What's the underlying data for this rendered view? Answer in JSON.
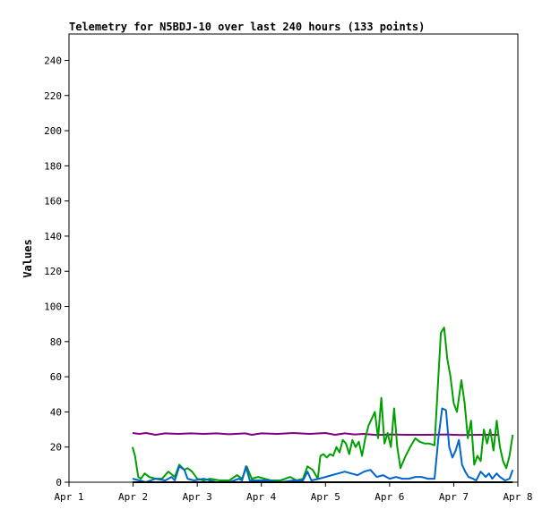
{
  "chart_data": {
    "type": "line",
    "title": "Telemetry for N5BDJ-10 over last 240 hours (133 points)",
    "xlabel": "",
    "ylabel": "Values",
    "xlim": [
      1,
      8
    ],
    "ylim": [
      0,
      255
    ],
    "x_ticks": [
      1,
      2,
      3,
      4,
      5,
      6,
      7,
      8
    ],
    "x_tick_labels": [
      "Apr 1",
      "Apr 2",
      "Apr 3",
      "Apr 4",
      "Apr 5",
      "Apr 6",
      "Apr 7",
      "Apr 8"
    ],
    "y_ticks": [
      0,
      20,
      40,
      60,
      80,
      100,
      120,
      140,
      160,
      180,
      200,
      220,
      240
    ],
    "grid": false,
    "legend": "none",
    "series": [
      {
        "color": "#800080",
        "points": [
          [
            1.99,
            28
          ],
          [
            2.1,
            27.5
          ],
          [
            2.2,
            28
          ],
          [
            2.35,
            27
          ],
          [
            2.5,
            27.8
          ],
          [
            2.7,
            27.5
          ],
          [
            2.9,
            27.8
          ],
          [
            3.1,
            27.5
          ],
          [
            3.3,
            27.8
          ],
          [
            3.5,
            27.3
          ],
          [
            3.75,
            27.8
          ],
          [
            3.85,
            27
          ],
          [
            4.0,
            27.8
          ],
          [
            4.25,
            27.5
          ],
          [
            4.5,
            28
          ],
          [
            4.75,
            27.5
          ],
          [
            5.0,
            28
          ],
          [
            5.15,
            27
          ],
          [
            5.3,
            27.8
          ],
          [
            5.45,
            27.2
          ],
          [
            5.6,
            27.5
          ],
          [
            5.8,
            26.8
          ],
          [
            6.0,
            27.2
          ],
          [
            6.3,
            27
          ],
          [
            6.6,
            27
          ],
          [
            6.9,
            27.2
          ],
          [
            7.1,
            26.8
          ],
          [
            7.4,
            27
          ],
          [
            7.7,
            27
          ]
        ]
      },
      {
        "color": "#00a000",
        "points": [
          [
            1.99,
            20
          ],
          [
            2.03,
            15
          ],
          [
            2.08,
            3
          ],
          [
            2.12,
            2
          ],
          [
            2.18,
            5
          ],
          [
            2.25,
            3
          ],
          [
            2.35,
            2
          ],
          [
            2.45,
            2
          ],
          [
            2.55,
            6
          ],
          [
            2.65,
            3
          ],
          [
            2.72,
            10
          ],
          [
            2.8,
            7
          ],
          [
            2.85,
            8
          ],
          [
            2.92,
            6
          ],
          [
            3.0,
            2
          ],
          [
            3.1,
            1
          ],
          [
            3.2,
            2
          ],
          [
            3.35,
            1
          ],
          [
            3.5,
            1
          ],
          [
            3.62,
            4
          ],
          [
            3.7,
            2
          ],
          [
            3.77,
            9
          ],
          [
            3.85,
            2
          ],
          [
            3.95,
            3
          ],
          [
            4.05,
            2
          ],
          [
            4.15,
            1
          ],
          [
            4.3,
            1
          ],
          [
            4.45,
            3
          ],
          [
            4.55,
            1
          ],
          [
            4.65,
            2
          ],
          [
            4.72,
            9
          ],
          [
            4.8,
            7
          ],
          [
            4.88,
            2
          ],
          [
            4.92,
            15
          ],
          [
            4.97,
            16
          ],
          [
            5.02,
            14
          ],
          [
            5.07,
            16
          ],
          [
            5.12,
            15
          ],
          [
            5.17,
            20
          ],
          [
            5.22,
            17
          ],
          [
            5.27,
            24
          ],
          [
            5.32,
            22
          ],
          [
            5.37,
            16
          ],
          [
            5.42,
            24
          ],
          [
            5.47,
            20
          ],
          [
            5.52,
            23
          ],
          [
            5.57,
            15
          ],
          [
            5.62,
            25
          ],
          [
            5.67,
            32
          ],
          [
            5.72,
            36
          ],
          [
            5.77,
            40
          ],
          [
            5.82,
            25
          ],
          [
            5.87,
            48
          ],
          [
            5.92,
            22
          ],
          [
            5.97,
            28
          ],
          [
            6.02,
            20
          ],
          [
            6.07,
            42
          ],
          [
            6.12,
            20
          ],
          [
            6.17,
            8
          ],
          [
            6.25,
            15
          ],
          [
            6.32,
            20
          ],
          [
            6.4,
            25
          ],
          [
            6.47,
            23
          ],
          [
            6.55,
            22
          ],
          [
            6.62,
            22
          ],
          [
            6.7,
            21
          ],
          [
            6.76,
            60
          ],
          [
            6.8,
            85
          ],
          [
            6.85,
            88
          ],
          [
            6.9,
            70
          ],
          [
            6.95,
            60
          ],
          [
            7.0,
            45
          ],
          [
            7.05,
            40
          ],
          [
            7.12,
            58
          ],
          [
            7.17,
            45
          ],
          [
            7.22,
            25
          ],
          [
            7.27,
            35
          ],
          [
            7.32,
            10
          ],
          [
            7.37,
            15
          ],
          [
            7.42,
            12
          ],
          [
            7.47,
            30
          ],
          [
            7.52,
            22
          ],
          [
            7.57,
            30
          ],
          [
            7.62,
            18
          ],
          [
            7.67,
            35
          ],
          [
            7.72,
            20
          ],
          [
            7.77,
            12
          ],
          [
            7.82,
            8
          ],
          [
            7.87,
            15
          ],
          [
            7.92,
            27
          ]
        ]
      },
      {
        "color": "#0066cc",
        "points": [
          [
            1.99,
            2
          ],
          [
            2.1,
            1
          ],
          [
            2.2,
            0
          ],
          [
            2.35,
            2
          ],
          [
            2.5,
            1
          ],
          [
            2.6,
            3
          ],
          [
            2.65,
            1
          ],
          [
            2.72,
            9
          ],
          [
            2.8,
            7
          ],
          [
            2.85,
            2
          ],
          [
            2.95,
            1
          ],
          [
            3.1,
            2
          ],
          [
            3.3,
            0
          ],
          [
            3.5,
            0
          ],
          [
            3.65,
            2
          ],
          [
            3.7,
            1
          ],
          [
            3.76,
            9
          ],
          [
            3.82,
            1
          ],
          [
            3.95,
            1
          ],
          [
            4.1,
            1
          ],
          [
            4.3,
            0
          ],
          [
            4.5,
            1
          ],
          [
            4.65,
            1
          ],
          [
            4.72,
            6
          ],
          [
            4.78,
            1
          ],
          [
            4.9,
            2
          ],
          [
            5.0,
            3
          ],
          [
            5.1,
            4
          ],
          [
            5.2,
            5
          ],
          [
            5.3,
            6
          ],
          [
            5.4,
            5
          ],
          [
            5.5,
            4
          ],
          [
            5.6,
            6
          ],
          [
            5.7,
            7
          ],
          [
            5.8,
            3
          ],
          [
            5.9,
            4
          ],
          [
            6.0,
            2
          ],
          [
            6.1,
            3
          ],
          [
            6.2,
            2
          ],
          [
            6.3,
            2
          ],
          [
            6.4,
            3
          ],
          [
            6.5,
            3
          ],
          [
            6.6,
            2
          ],
          [
            6.7,
            2
          ],
          [
            6.76,
            25
          ],
          [
            6.82,
            42
          ],
          [
            6.88,
            41
          ],
          [
            6.93,
            20
          ],
          [
            6.98,
            14
          ],
          [
            7.03,
            18
          ],
          [
            7.08,
            24
          ],
          [
            7.13,
            10
          ],
          [
            7.18,
            6
          ],
          [
            7.23,
            3
          ],
          [
            7.3,
            2
          ],
          [
            7.35,
            1
          ],
          [
            7.42,
            6
          ],
          [
            7.5,
            3
          ],
          [
            7.55,
            5
          ],
          [
            7.6,
            2
          ],
          [
            7.67,
            5
          ],
          [
            7.72,
            3
          ],
          [
            7.8,
            1
          ],
          [
            7.87,
            2
          ],
          [
            7.92,
            7
          ]
        ]
      },
      {
        "color": "#000000",
        "points": [
          [
            1.99,
            0
          ],
          [
            7.92,
            0
          ]
        ]
      }
    ]
  }
}
